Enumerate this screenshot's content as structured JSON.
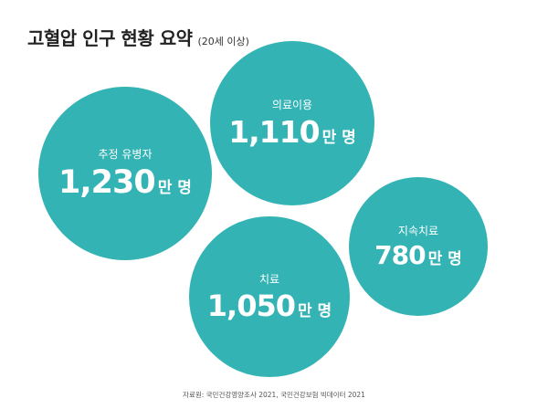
{
  "title": "고혈압 인구 현황 요약",
  "subtitle": "(20세 이상)",
  "unit": "만 명",
  "chart_data": {
    "type": "bubble",
    "title": "고혈압 인구 현황 요약",
    "subtitle": "(20세 이상)",
    "unit": "만 명",
    "categories": [
      "추정 유병자",
      "의료이용",
      "지속치료",
      "치료"
    ],
    "values": [
      1230,
      1110,
      780,
      1050
    ],
    "value_labels": [
      "1,230",
      "1,110",
      "780",
      "1,050"
    ],
    "color": "#34B3B5"
  },
  "source": "자료원: 국민건강영양조사 2021, 국민건강보험 빅데이터 2021"
}
